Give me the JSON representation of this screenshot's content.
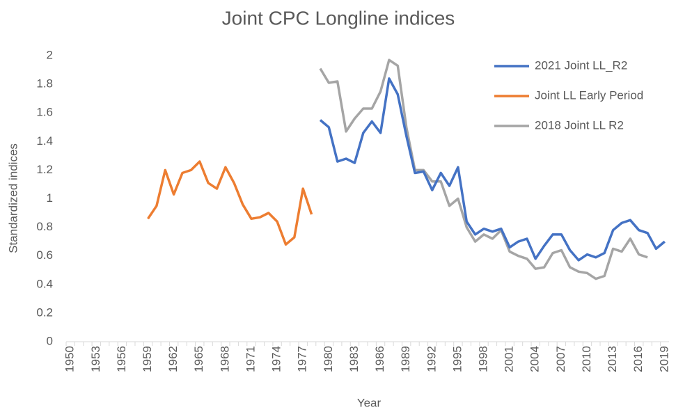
{
  "chart_data": {
    "type": "line",
    "title": "Joint CPC Longline indices",
    "x_label": "Year",
    "y_label": "Standardized indices",
    "x": [
      1950,
      1951,
      1952,
      1953,
      1954,
      1955,
      1956,
      1957,
      1958,
      1959,
      1960,
      1961,
      1962,
      1963,
      1964,
      1965,
      1966,
      1967,
      1968,
      1969,
      1970,
      1971,
      1972,
      1973,
      1974,
      1975,
      1976,
      1977,
      1978,
      1979,
      1980,
      1981,
      1982,
      1983,
      1984,
      1985,
      1986,
      1987,
      1988,
      1989,
      1990,
      1991,
      1992,
      1993,
      1994,
      1995,
      1996,
      1997,
      1998,
      1999,
      2000,
      2001,
      2002,
      2003,
      2004,
      2005,
      2006,
      2007,
      2008,
      2009,
      2010,
      2011,
      2012,
      2013,
      2014,
      2015,
      2016,
      2017,
      2018,
      2019
    ],
    "xlim": [
      1949.5,
      2019.5
    ],
    "xticks": [
      1950,
      1953,
      1956,
      1959,
      1962,
      1965,
      1968,
      1971,
      1974,
      1977,
      1980,
      1983,
      1986,
      1989,
      1992,
      1995,
      1998,
      2001,
      2004,
      2007,
      2010,
      2013,
      2016,
      2019
    ],
    "ylim": [
      0,
      2
    ],
    "yticks": [
      0,
      0.2,
      0.4,
      0.6,
      0.8,
      1,
      1.2,
      1.4,
      1.6,
      1.8,
      2
    ],
    "legend": "top-right",
    "series": [
      {
        "name": "2021 Joint LL_R2",
        "color": "#4472c4",
        "values": [
          null,
          null,
          null,
          null,
          null,
          null,
          null,
          null,
          null,
          null,
          null,
          null,
          null,
          null,
          null,
          null,
          null,
          null,
          null,
          null,
          null,
          null,
          null,
          null,
          null,
          null,
          null,
          null,
          null,
          1.55,
          1.5,
          1.26,
          1.28,
          1.25,
          1.46,
          1.54,
          1.46,
          1.84,
          1.73,
          1.44,
          1.18,
          1.19,
          1.06,
          1.18,
          1.09,
          1.22,
          0.84,
          0.75,
          0.79,
          0.77,
          0.79,
          0.66,
          0.7,
          0.72,
          0.58,
          0.67,
          0.75,
          0.75,
          0.64,
          0.57,
          0.61,
          0.59,
          0.62,
          0.78,
          0.83,
          0.85,
          0.78,
          0.76,
          0.65,
          0.7
        ]
      },
      {
        "name": "Joint LL Early Period",
        "color": "#ed7d31",
        "values": [
          null,
          null,
          null,
          null,
          null,
          null,
          null,
          null,
          null,
          0.86,
          0.95,
          1.2,
          1.03,
          1.18,
          1.2,
          1.26,
          1.11,
          1.07,
          1.22,
          1.11,
          0.96,
          0.86,
          0.87,
          0.9,
          0.84,
          0.68,
          0.73,
          1.07,
          0.89,
          null,
          null,
          null,
          null,
          null,
          null,
          null,
          null,
          null,
          null,
          null,
          null,
          null,
          null,
          null,
          null,
          null,
          null,
          null,
          null,
          null,
          null,
          null,
          null,
          null,
          null,
          null,
          null,
          null,
          null,
          null,
          null,
          null,
          null,
          null,
          null,
          null,
          null,
          null,
          null,
          null
        ]
      },
      {
        "name": "2018 Joint LL R2",
        "color": "#a5a5a5",
        "values": [
          null,
          null,
          null,
          null,
          null,
          null,
          null,
          null,
          null,
          null,
          null,
          null,
          null,
          null,
          null,
          null,
          null,
          null,
          null,
          null,
          null,
          null,
          null,
          null,
          null,
          null,
          null,
          null,
          null,
          1.91,
          1.81,
          1.82,
          1.47,
          1.56,
          1.63,
          1.63,
          1.75,
          1.97,
          1.93,
          1.5,
          1.2,
          1.2,
          1.12,
          1.12,
          0.95,
          1.0,
          0.8,
          0.7,
          0.75,
          0.72,
          0.78,
          0.63,
          0.6,
          0.58,
          0.51,
          0.52,
          0.62,
          0.64,
          0.52,
          0.49,
          0.48,
          0.44,
          0.46,
          0.65,
          0.63,
          0.72,
          0.61,
          0.59,
          null,
          null
        ]
      }
    ]
  }
}
